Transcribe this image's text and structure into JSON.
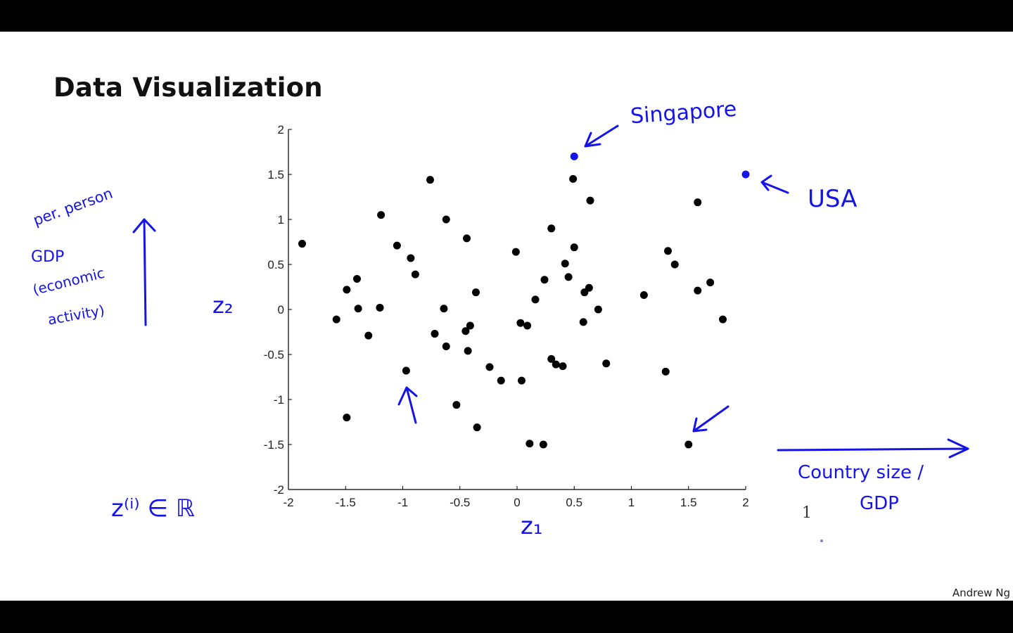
{
  "slide": {
    "title": "Data Visualization",
    "author": "Andrew Ng",
    "stray_text": "1"
  },
  "annotations": {
    "singapore": "Singapore",
    "usa": "USA",
    "y_axis_note_line1": "per. person",
    "y_axis_note_line2": "GDP",
    "y_axis_note_line3": "(economic",
    "y_axis_note_line4": "activity)",
    "x_axis_note_line1": "Country size /",
    "x_axis_note_line2": "GDP",
    "z2": "z₂",
    "z1": "z₁",
    "z_def": "z⁽ⁱ⁾ ∈ ℝ",
    "ink_color": "#1414e8"
  },
  "chart_data": {
    "type": "scatter",
    "title": "",
    "xlabel": "",
    "ylabel": "",
    "xlim": [
      -2,
      2
    ],
    "ylim": [
      -2,
      2
    ],
    "xticks": [
      "-2",
      "-1.5",
      "-1",
      "-0.5",
      "0",
      "0.5",
      "1",
      "1.5",
      "2"
    ],
    "yticks": [
      "2",
      "1.5",
      "1",
      "0.5",
      "0",
      "-0.5",
      "-1",
      "-1.5",
      "-2"
    ],
    "grid": false,
    "points": [
      [
        -1.88,
        0.73
      ],
      [
        -1.58,
        -0.11
      ],
      [
        -1.49,
        0.22
      ],
      [
        -1.49,
        -1.2
      ],
      [
        -1.4,
        0.34
      ],
      [
        -1.39,
        0.01
      ],
      [
        -1.3,
        -0.29
      ],
      [
        -1.2,
        0.02
      ],
      [
        -1.19,
        1.05
      ],
      [
        -1.05,
        0.71
      ],
      [
        -0.97,
        -0.68
      ],
      [
        -0.93,
        0.57
      ],
      [
        -0.89,
        0.39
      ],
      [
        -0.76,
        1.44
      ],
      [
        -0.72,
        -0.27
      ],
      [
        -0.64,
        0.01
      ],
      [
        -0.62,
        -0.41
      ],
      [
        -0.62,
        1.0
      ],
      [
        -0.53,
        -1.06
      ],
      [
        -0.45,
        -0.24
      ],
      [
        -0.44,
        0.79
      ],
      [
        -0.43,
        -0.46
      ],
      [
        -0.41,
        -0.18
      ],
      [
        -0.36,
        0.19
      ],
      [
        -0.35,
        -1.31
      ],
      [
        -0.24,
        -0.64
      ],
      [
        -0.14,
        -0.79
      ],
      [
        -0.01,
        0.64
      ],
      [
        0.03,
        -0.15
      ],
      [
        0.04,
        -0.79
      ],
      [
        0.09,
        -0.18
      ],
      [
        0.11,
        -1.49
      ],
      [
        0.16,
        0.11
      ],
      [
        0.23,
        -1.5
      ],
      [
        0.24,
        0.33
      ],
      [
        0.3,
        0.9
      ],
      [
        0.3,
        -0.55
      ],
      [
        0.34,
        -0.61
      ],
      [
        0.4,
        -0.63
      ],
      [
        0.42,
        0.51
      ],
      [
        0.45,
        0.36
      ],
      [
        0.49,
        1.45
      ],
      [
        0.5,
        0.69
      ],
      [
        0.58,
        -0.14
      ],
      [
        0.59,
        0.19
      ],
      [
        0.63,
        0.24
      ],
      [
        0.64,
        1.21
      ],
      [
        0.71,
        0.0
      ],
      [
        0.78,
        -0.6
      ],
      [
        1.11,
        0.16
      ],
      [
        1.3,
        -0.69
      ],
      [
        1.32,
        0.65
      ],
      [
        1.38,
        0.5
      ],
      [
        1.5,
        -1.5
      ],
      [
        1.58,
        1.19
      ],
      [
        1.58,
        0.21
      ],
      [
        1.69,
        0.3
      ],
      [
        1.8,
        -0.11
      ]
    ],
    "highlighted_points": [
      {
        "label": "Singapore",
        "x": 0.5,
        "y": 1.7
      },
      {
        "label": "USA",
        "x": 2.0,
        "y": 1.5
      }
    ]
  }
}
